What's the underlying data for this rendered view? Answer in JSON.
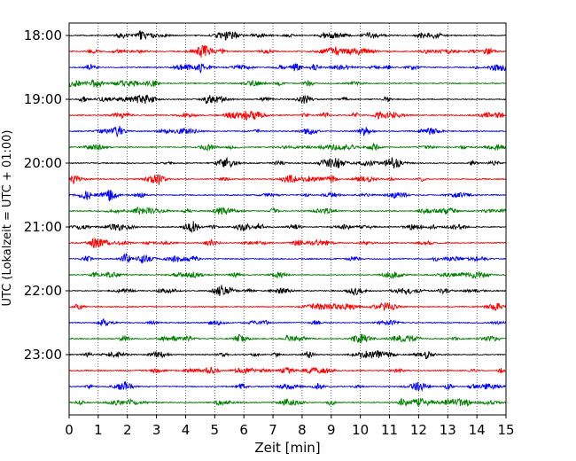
{
  "chart_data": {
    "type": "line",
    "title": "",
    "xlabel": "Zeit  [min]",
    "ylabel": "UTC (Lokalzeit = UTC + 01:00)",
    "xlim": [
      0,
      15
    ],
    "x_ticks": [
      "0",
      "1",
      "2",
      "3",
      "4",
      "5",
      "6",
      "7",
      "8",
      "9",
      "10",
      "11",
      "12",
      "13",
      "14",
      "15"
    ],
    "y_ticks": [
      "18:00",
      "19:00",
      "20:00",
      "21:00",
      "22:00",
      "23:00"
    ],
    "grid": "vertical dotted lines at each minute",
    "trace_minutes": 15,
    "traces_per_hour": 4,
    "trace_start_times": [
      "18:00",
      "18:15",
      "18:30",
      "18:45",
      "19:00",
      "19:15",
      "19:30",
      "19:45",
      "20:00",
      "20:15",
      "20:30",
      "20:45",
      "21:00",
      "21:15",
      "21:30",
      "21:45",
      "22:00",
      "22:15",
      "22:30",
      "22:45",
      "23:00",
      "23:15",
      "23:30",
      "23:45"
    ],
    "trace_colors": [
      "#000000",
      "#ff0000",
      "#0000ff",
      "#007f00"
    ]
  }
}
